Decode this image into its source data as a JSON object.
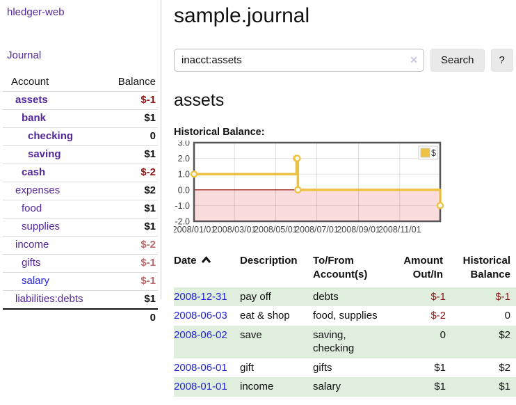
{
  "app": {
    "title": "hledger-web",
    "nav_journal": "Journal"
  },
  "sidebar": {
    "accounts_header": {
      "account": "Account",
      "balance": "Balance"
    },
    "accounts": [
      {
        "name": "assets",
        "depth": 1,
        "balance": "$-1",
        "bold": true,
        "negative": "strong"
      },
      {
        "name": "bank",
        "depth": 2,
        "balance": "$1",
        "bold": true
      },
      {
        "name": "checking",
        "depth": 3,
        "balance": "0",
        "bold": true
      },
      {
        "name": "saving",
        "depth": 3,
        "balance": "$1",
        "bold": true
      },
      {
        "name": "cash",
        "depth": 2,
        "balance": "$-2",
        "bold": true,
        "negative": "strong"
      },
      {
        "name": "expenses",
        "depth": 1,
        "balance": "$2"
      },
      {
        "name": "food",
        "depth": 2,
        "balance": "$1"
      },
      {
        "name": "supplies",
        "depth": 2,
        "balance": "$1"
      },
      {
        "name": "income",
        "depth": 1,
        "balance": "$-2",
        "negative": "soft"
      },
      {
        "name": "gifts",
        "depth": 2,
        "balance": "$-1",
        "negative": "soft"
      },
      {
        "name": "salary",
        "depth": 2,
        "balance": "$-1",
        "negative": "soft",
        "link_color": "blue"
      },
      {
        "name": "liabilities:debts",
        "depth": 1,
        "balance": "$1"
      }
    ],
    "total": "0"
  },
  "header": {
    "title": "sample.journal"
  },
  "search": {
    "value": "inacct:assets",
    "clear_icon": "✕",
    "button_label": "Search",
    "help_label": "?"
  },
  "account_page": {
    "heading": "assets",
    "chart_label": "Historical Balance:"
  },
  "chart_data": {
    "type": "line",
    "title": "Historical Balance",
    "series": [
      {
        "name": "$",
        "color": "#edc240",
        "step": true,
        "x": [
          "2008/01/01",
          "2008/06/01",
          "2008/06/02",
          "2008/06/03",
          "2008/12/31"
        ],
        "y": [
          1,
          2,
          2,
          0,
          -1
        ]
      }
    ],
    "x_range": [
      "2008/01/01",
      "2008/12/31"
    ],
    "ylim": [
      -2,
      3
    ],
    "y_ticks": [
      "3.0",
      "2.0",
      "1.0",
      "0.0",
      "-1.0",
      "-2.0"
    ],
    "x_ticks": [
      "2008/01/01",
      "2008/03/01",
      "2008/05/01",
      "2008/07/01",
      "2008/09/01",
      "2008/11/01"
    ],
    "legend": {
      "label": "$",
      "position": "top-right"
    },
    "negative_region_color": "#fbdcdc",
    "zero_line_color": "#8b0000",
    "grid": true
  },
  "register": {
    "columns": [
      {
        "label": "Date",
        "sort": "asc"
      },
      {
        "label": "Description"
      },
      {
        "label": "To/From Account(s)"
      },
      {
        "label": "Amount Out/In",
        "align": "right"
      },
      {
        "label": "Historical Balance",
        "align": "right"
      }
    ],
    "rows": [
      {
        "date": "2008-12-31",
        "description": "pay off",
        "accounts": "debts",
        "amount": "$-1",
        "balance": "$-1"
      },
      {
        "date": "2008-06-03",
        "description": "eat & shop",
        "accounts": "food, supplies",
        "amount": "$-2",
        "balance": "0"
      },
      {
        "date": "2008-06-02",
        "description": "save",
        "accounts": "saving, checking",
        "amount": "0",
        "balance": "$2"
      },
      {
        "date": "2008-06-01",
        "description": "gift",
        "accounts": "gifts",
        "amount": "$1",
        "balance": "$2"
      },
      {
        "date": "2008-01-01",
        "description": "income",
        "accounts": "salary",
        "amount": "$1",
        "balance": "$1"
      }
    ]
  }
}
